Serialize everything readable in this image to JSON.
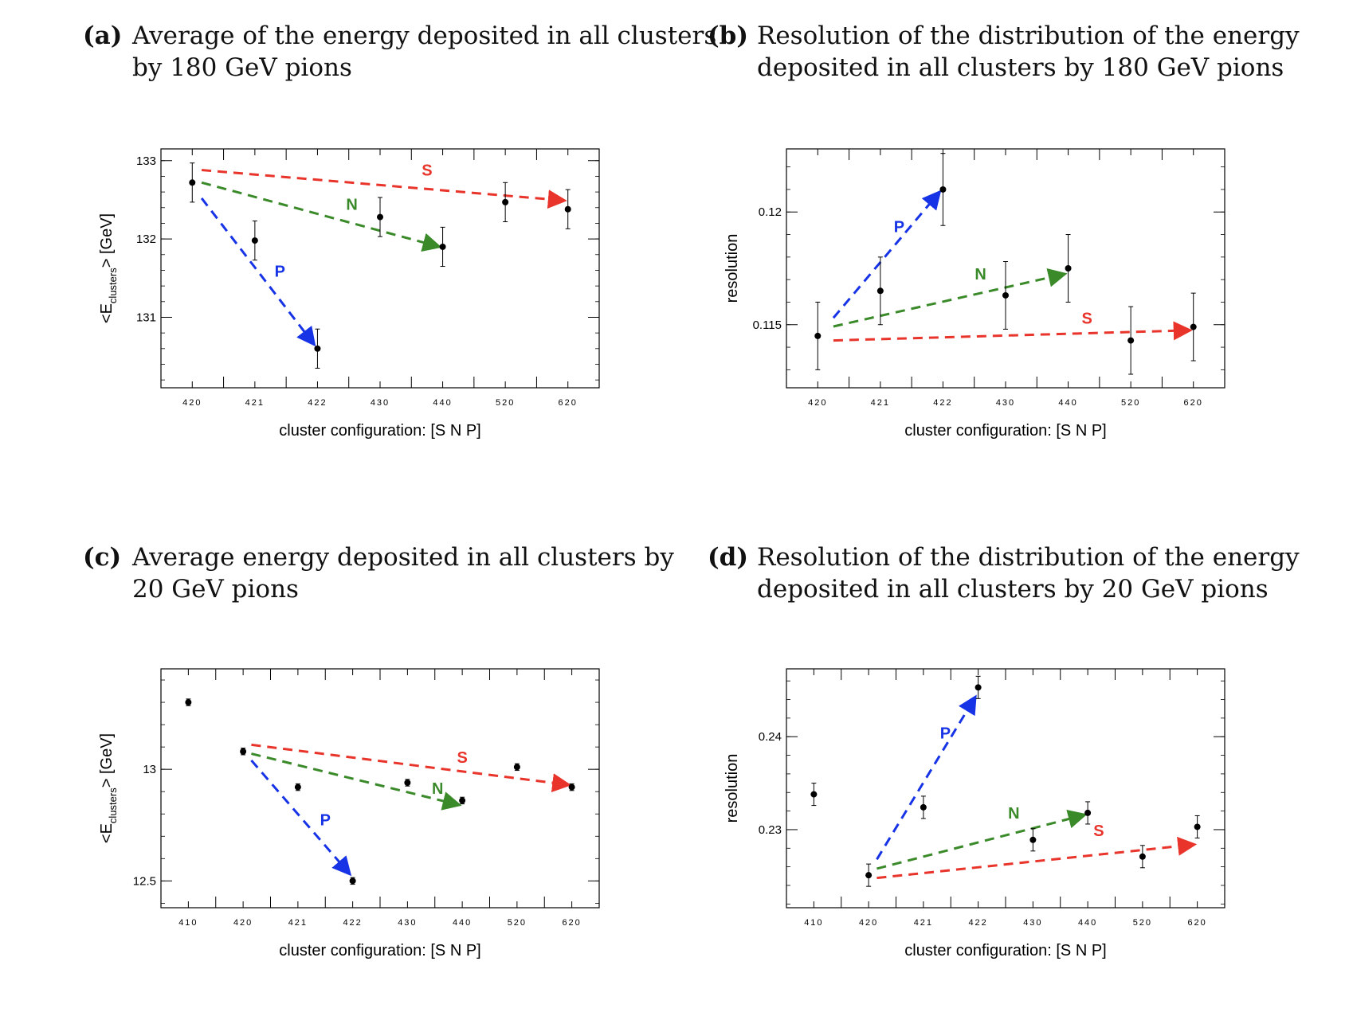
{
  "captions": [
    {
      "tag": "(a)",
      "lines": [
        "Average of the energy deposited in all clusters",
        "by 180 GeV pions"
      ]
    },
    {
      "tag": "(b)",
      "lines": [
        "Resolution of the distribution of the energy",
        "deposited in all clusters by 180 GeV pions"
      ]
    },
    {
      "tag": "(c)",
      "lines": [
        "Average energy deposited in all clusters by",
        "20 GeV pions"
      ]
    },
    {
      "tag": "(d)",
      "lines": [
        "Resolution of the distribution of the energy",
        "deposited in all clusters by 20 GeV pions"
      ]
    }
  ],
  "colors": {
    "S": "#e8342a",
    "N": "#3a8a2a",
    "P": "#1733e6",
    "marker": "#000000",
    "frame": "#000000"
  },
  "chart_data": [
    {
      "type": "scatter",
      "panel": "a",
      "xlabel": "cluster configuration: [S  N  P]",
      "ylabel": "<E_clusters> [GeV]",
      "ylim": [
        130.1,
        133.15
      ],
      "yticks": [
        131,
        132,
        133
      ],
      "ytick_labels": [
        "131",
        "132",
        "133"
      ],
      "categories": [
        "420",
        "421",
        "422",
        "430",
        "440",
        "520",
        "620"
      ],
      "points": [
        {
          "x": "420",
          "y": 132.72,
          "err": 0.25
        },
        {
          "x": "421",
          "y": 131.98,
          "err": 0.25
        },
        {
          "x": "422",
          "y": 130.6,
          "err": 0.25
        },
        {
          "x": "430",
          "y": 132.28,
          "err": 0.25
        },
        {
          "x": "440",
          "y": 131.9,
          "err": 0.25
        },
        {
          "x": "520",
          "y": 132.47,
          "err": 0.25
        },
        {
          "x": "620",
          "y": 132.38,
          "err": 0.25
        }
      ],
      "arrows": [
        {
          "label": "S",
          "from": [
            0.15,
            132.88
          ],
          "to": [
            5.95,
            132.49
          ],
          "label_at": [
            3.75,
            132.81
          ]
        },
        {
          "label": "N",
          "from": [
            0.15,
            132.72
          ],
          "to": [
            3.95,
            131.9
          ],
          "label_at": [
            2.55,
            132.37
          ]
        },
        {
          "label": "P",
          "from": [
            0.15,
            132.52
          ],
          "to": [
            1.95,
            130.65
          ],
          "label_at": [
            1.4,
            131.52
          ]
        }
      ]
    },
    {
      "type": "scatter",
      "panel": "b",
      "xlabel": "cluster configuration: [S N P]",
      "ylabel": "resolution",
      "ylim": [
        0.1122,
        0.1228
      ],
      "yticks": [
        0.115,
        0.12
      ],
      "ytick_labels": [
        "0.115",
        "0.12"
      ],
      "categories": [
        "420",
        "421",
        "422",
        "430",
        "440",
        "520",
        "620"
      ],
      "points": [
        {
          "x": "420",
          "y": 0.1145,
          "err": 0.0015
        },
        {
          "x": "421",
          "y": 0.1165,
          "err": 0.0015
        },
        {
          "x": "422",
          "y": 0.121,
          "err": 0.0016
        },
        {
          "x": "430",
          "y": 0.1163,
          "err": 0.0015
        },
        {
          "x": "440",
          "y": 0.1175,
          "err": 0.0015
        },
        {
          "x": "520",
          "y": 0.1143,
          "err": 0.0015
        },
        {
          "x": "620",
          "y": 0.1149,
          "err": 0.0015
        }
      ],
      "arrows": [
        {
          "label": "S",
          "from": [
            0.25,
            0.1143
          ],
          "to": [
            5.95,
            0.11475
          ],
          "label_at": [
            4.3,
            0.11505
          ]
        },
        {
          "label": "N",
          "from": [
            0.25,
            0.11492
          ],
          "to": [
            3.95,
            0.11725
          ],
          "label_at": [
            2.6,
            0.117
          ]
        },
        {
          "label": "P",
          "from": [
            0.25,
            0.1153
          ],
          "to": [
            1.95,
            0.1209
          ],
          "label_at": [
            1.3,
            0.1191
          ]
        }
      ]
    },
    {
      "type": "scatter",
      "panel": "c",
      "xlabel": "cluster configuration: [S N P]",
      "ylabel": "<E_clusters> [GeV]",
      "ylim": [
        12.38,
        13.45
      ],
      "yticks": [
        12.5,
        13
      ],
      "ytick_labels": [
        "12.5",
        "13"
      ],
      "categories": [
        "410",
        "420",
        "421",
        "422",
        "430",
        "440",
        "520",
        "620"
      ],
      "points": [
        {
          "x": "410",
          "y": 13.3,
          "err": 0.015
        },
        {
          "x": "420",
          "y": 13.08,
          "err": 0.015
        },
        {
          "x": "421",
          "y": 12.92,
          "err": 0.015
        },
        {
          "x": "422",
          "y": 12.5,
          "err": 0.015
        },
        {
          "x": "430",
          "y": 12.94,
          "err": 0.015
        },
        {
          "x": "440",
          "y": 12.86,
          "err": 0.015
        },
        {
          "x": "520",
          "y": 13.01,
          "err": 0.015
        },
        {
          "x": "620",
          "y": 12.92,
          "err": 0.015
        }
      ],
      "arrows": [
        {
          "label": "S",
          "from": [
            1.15,
            13.11
          ],
          "to": [
            6.95,
            12.93
          ],
          "label_at": [
            5.0,
            13.03
          ]
        },
        {
          "label": "N",
          "from": [
            1.15,
            13.07
          ],
          "to": [
            4.95,
            12.84
          ],
          "label_at": [
            4.55,
            12.89
          ]
        },
        {
          "label": "P",
          "from": [
            1.15,
            13.04
          ],
          "to": [
            2.95,
            12.53
          ],
          "label_at": [
            2.5,
            12.75
          ]
        }
      ]
    },
    {
      "type": "scatter",
      "panel": "d",
      "xlabel": "cluster configuration: [S N P]",
      "ylabel": "resolution",
      "ylim": [
        0.2216,
        0.2473
      ],
      "yticks": [
        0.23,
        0.24
      ],
      "ytick_labels": [
        "0.23",
        "0.24"
      ],
      "categories": [
        "410",
        "420",
        "421",
        "422",
        "430",
        "440",
        "520",
        "620"
      ],
      "points": [
        {
          "x": "410",
          "y": 0.2338,
          "err": 0.0012
        },
        {
          "x": "420",
          "y": 0.2251,
          "err": 0.0012
        },
        {
          "x": "421",
          "y": 0.2324,
          "err": 0.0012
        },
        {
          "x": "422",
          "y": 0.2453,
          "err": 0.0012
        },
        {
          "x": "430",
          "y": 0.2289,
          "err": 0.0012
        },
        {
          "x": "440",
          "y": 0.2318,
          "err": 0.0012
        },
        {
          "x": "520",
          "y": 0.2271,
          "err": 0.0012
        },
        {
          "x": "620",
          "y": 0.2303,
          "err": 0.0012
        }
      ],
      "arrows": [
        {
          "label": "S",
          "from": [
            1.15,
            0.2248
          ],
          "to": [
            6.95,
            0.2284
          ],
          "label_at": [
            5.2,
            0.2293
          ]
        },
        {
          "label": "N",
          "from": [
            1.15,
            0.2258
          ],
          "to": [
            4.95,
            0.2316
          ],
          "label_at": [
            3.65,
            0.2312
          ]
        },
        {
          "label": "P",
          "from": [
            1.15,
            0.2268
          ],
          "to": [
            2.95,
            0.2443
          ],
          "label_at": [
            2.4,
            0.2398
          ]
        }
      ]
    }
  ]
}
